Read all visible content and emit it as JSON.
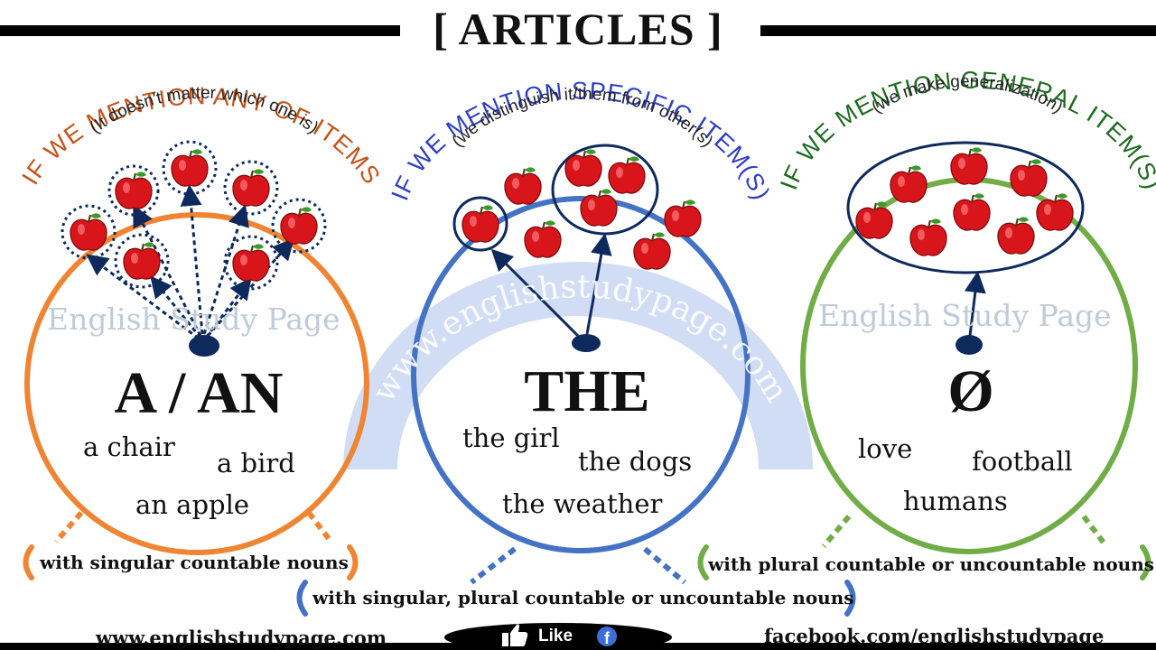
{
  "title": "[ ARTICLES ]",
  "watermark": {
    "left": "English Study Page",
    "right": "English Study Page",
    "arc": "www.englishstudypage.com"
  },
  "panels": [
    {
      "heading": "IF WE MENTION ANY OF ITEMS",
      "subheading": "(It doesn't matter which one is)",
      "article": "A / AN",
      "examples": [
        "a chair",
        "a bird",
        "an apple"
      ],
      "note": "with singular countable nouns",
      "color": "#ef8433"
    },
    {
      "heading": "IF WE MENTION SPECIFIC ITEM(S)",
      "subheading": "(we distinguish it/them from other(s)",
      "article": "THE",
      "examples": [
        "the girl",
        "the dogs",
        "the weather"
      ],
      "note": "with singular, plural countable or uncountable nouns",
      "color": "#4472c4"
    },
    {
      "heading": "IF WE MENTION GENERAL ITEM(S)",
      "subheading": "(we make generalization)",
      "article": "Ø",
      "examples": [
        "love",
        "football",
        "humans"
      ],
      "note": "with plural countable or uncountable nouns",
      "color": "#70ad47"
    }
  ],
  "footer": {
    "website": "www.englishstudypage.com",
    "like": "Like",
    "facebook": "facebook.com/englishstudypage"
  },
  "colors": {
    "orange": "#ef8433",
    "blue": "#4472c4",
    "green": "#70ad47",
    "heading_orange": "#c3531a",
    "heading_blue": "#2f3fc4",
    "heading_green": "#1e6b1e",
    "navy": "#0e2a5c",
    "apple": "#d8151b"
  },
  "icons": [
    "apple-icon",
    "thumbs-up-icon",
    "facebook-icon"
  ]
}
